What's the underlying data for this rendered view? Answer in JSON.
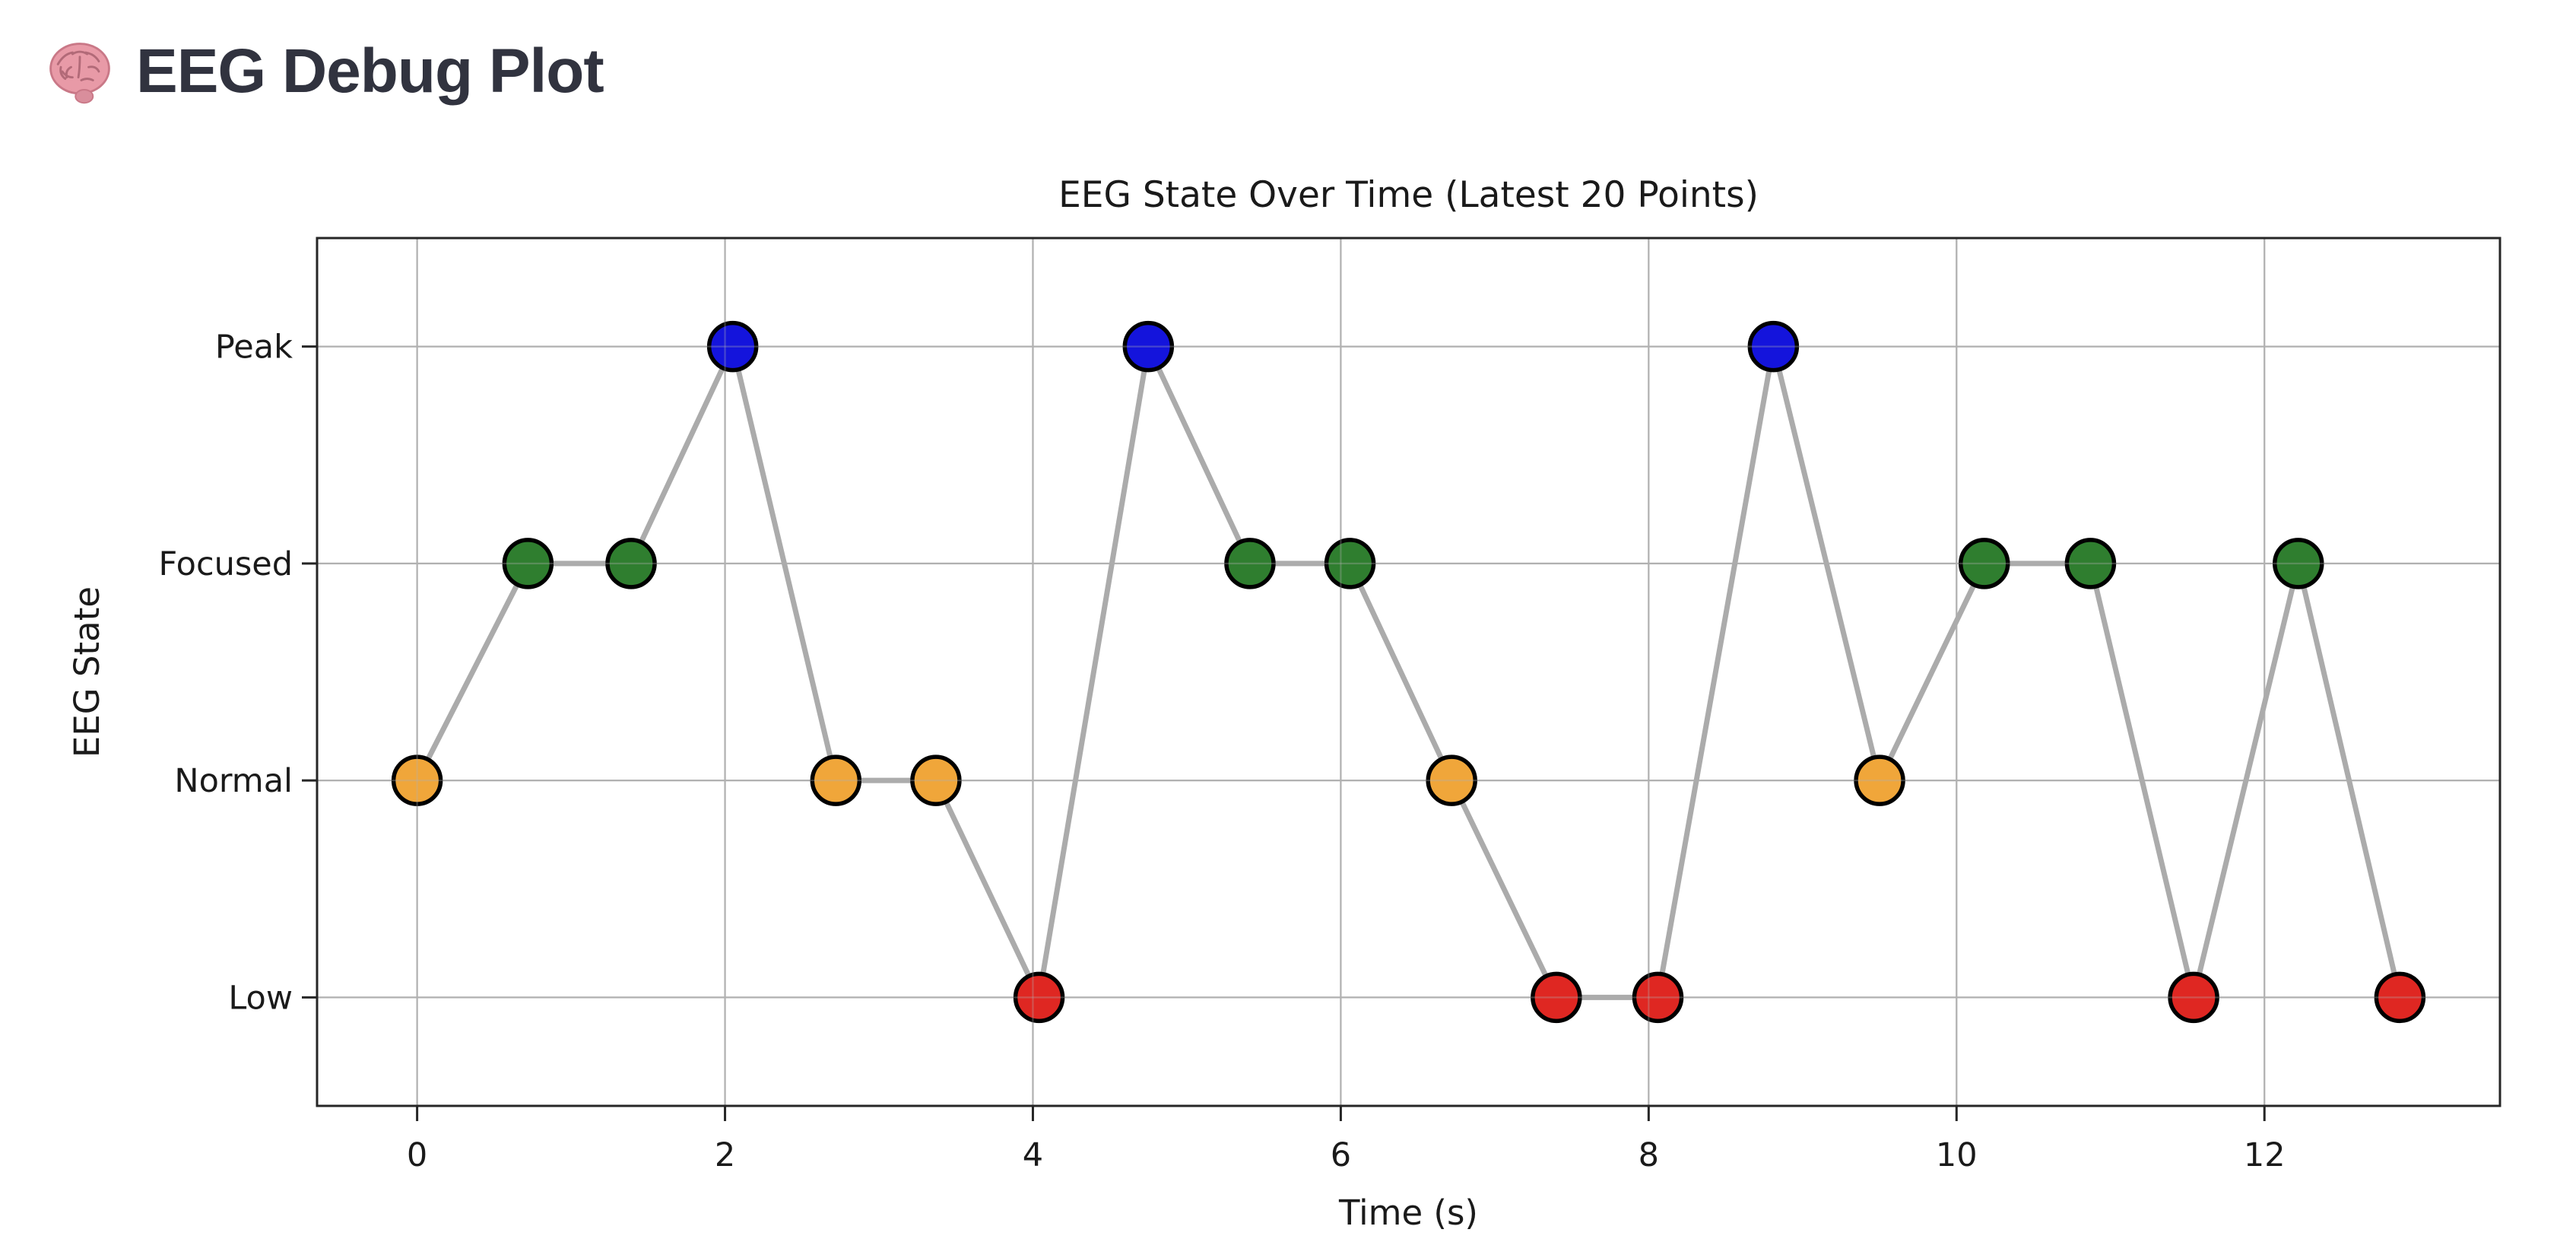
{
  "header": {
    "emoji": "🧠",
    "title": "EEG Debug Plot"
  },
  "chart_data": {
    "type": "line",
    "title": "EEG State Over Time (Latest 20 Points)",
    "xlabel": "Time (s)",
    "ylabel": "EEG State",
    "x_ticks": [
      0,
      2,
      4,
      6,
      8,
      10,
      12
    ],
    "xlim": [
      -0.65,
      13.53
    ],
    "ylim": [
      -0.5,
      3.5
    ],
    "grid": true,
    "legend": "none",
    "y_categories": [
      "Low",
      "Normal",
      "Focused",
      "Peak"
    ],
    "state_colors": {
      "Low": "#df2722",
      "Normal": "#f0a63a",
      "Focused": "#2f7e2f",
      "Peak": "#1414dc"
    },
    "line_color": "#ababab",
    "grid_color": "#b1b1b1",
    "spine_color": "#262626",
    "marker_edge_color": "#000000",
    "points": [
      {
        "t": 0.0,
        "state": "Normal"
      },
      {
        "t": 0.72,
        "state": "Focused"
      },
      {
        "t": 1.39,
        "state": "Focused"
      },
      {
        "t": 2.05,
        "state": "Peak"
      },
      {
        "t": 2.72,
        "state": "Normal"
      },
      {
        "t": 3.37,
        "state": "Normal"
      },
      {
        "t": 4.04,
        "state": "Low"
      },
      {
        "t": 4.75,
        "state": "Peak"
      },
      {
        "t": 5.41,
        "state": "Focused"
      },
      {
        "t": 6.06,
        "state": "Focused"
      },
      {
        "t": 6.72,
        "state": "Normal"
      },
      {
        "t": 7.4,
        "state": "Low"
      },
      {
        "t": 8.06,
        "state": "Low"
      },
      {
        "t": 8.81,
        "state": "Peak"
      },
      {
        "t": 9.5,
        "state": "Normal"
      },
      {
        "t": 10.18,
        "state": "Focused"
      },
      {
        "t": 10.87,
        "state": "Focused"
      },
      {
        "t": 11.54,
        "state": "Low"
      },
      {
        "t": 12.22,
        "state": "Focused"
      },
      {
        "t": 12.88,
        "state": "Low"
      }
    ]
  }
}
